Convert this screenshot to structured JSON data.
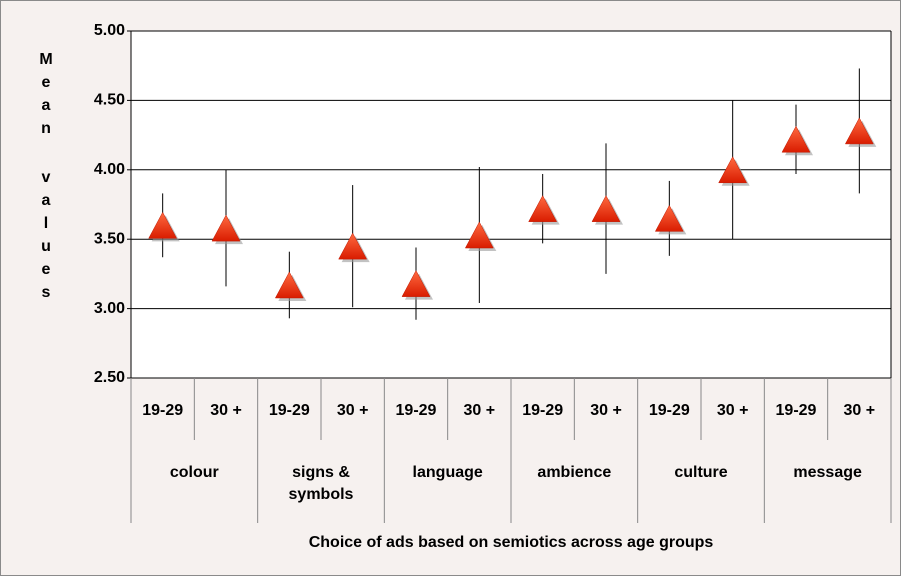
{
  "chart_data": {
    "type": "errorbar-triangle",
    "y_label": "Mean values",
    "x_label": "Choice of ads based on semiotics across age groups",
    "categories": [
      "19-29",
      "30 +",
      "19-29",
      "30 +",
      "19-29",
      "30 +",
      "19-29",
      "30 +",
      "19-29",
      "30 +",
      "19-29",
      "30 +"
    ],
    "groups": [
      "colour",
      "signs &\nsymbols",
      "language",
      "ambience",
      "culture",
      "message"
    ],
    "values": [
      3.6,
      3.58,
      3.17,
      3.45,
      3.18,
      3.53,
      3.72,
      3.72,
      3.65,
      4.0,
      4.22,
      4.28
    ],
    "errors": [
      0.23,
      0.42,
      0.24,
      0.44,
      0.26,
      0.49,
      0.25,
      0.47,
      0.27,
      0.5,
      0.25,
      0.45
    ],
    "color": "#ff2200",
    "ylim": [
      2.5,
      5.0
    ],
    "yticks": [
      {
        "value": 2.5,
        "label": "2.50"
      },
      {
        "value": 3.0,
        "label": "3.00"
      },
      {
        "value": 3.5,
        "label": "3.50"
      },
      {
        "value": 4.0,
        "label": "4.00"
      },
      {
        "value": 4.5,
        "label": "4.50"
      },
      {
        "value": 5.0,
        "label": "5.00"
      }
    ],
    "grid": true
  }
}
